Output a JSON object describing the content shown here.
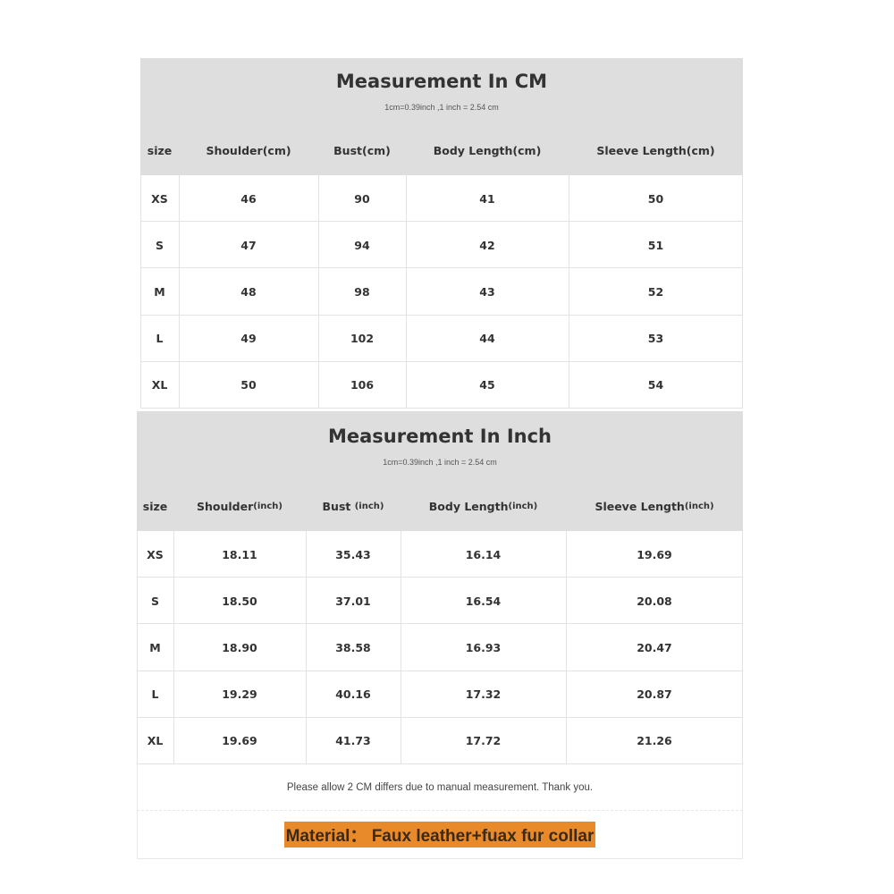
{
  "cm_table": {
    "title": "Measurement In CM",
    "subtitle": "1cm=0.39inch ,1 inch = 2.54 cm",
    "headers": [
      {
        "main": "size",
        "unit": ""
      },
      {
        "main": "Shoulder(cm)",
        "unit": ""
      },
      {
        "main": "Bust(cm)",
        "unit": ""
      },
      {
        "main": "Body Length(cm)",
        "unit": ""
      },
      {
        "main": "Sleeve Length(cm)",
        "unit": ""
      }
    ],
    "rows": [
      [
        "XS",
        "46",
        "90",
        "41",
        "50"
      ],
      [
        "S",
        "47",
        "94",
        "42",
        "51"
      ],
      [
        "M",
        "48",
        "98",
        "43",
        "52"
      ],
      [
        "L",
        "49",
        "102",
        "44",
        "53"
      ],
      [
        "XL",
        "50",
        "106",
        "45",
        "54"
      ]
    ]
  },
  "inch_table": {
    "title": "Measurement In Inch",
    "subtitle": "1cm=0.39inch ,1 inch = 2.54 cm",
    "headers": [
      {
        "main": "size",
        "unit": ""
      },
      {
        "main": "Shoulder",
        "unit": "(inch)"
      },
      {
        "main": "Bust ",
        "unit": "(inch)"
      },
      {
        "main": "Body Length",
        "unit": "(inch)"
      },
      {
        "main": "Sleeve Length",
        "unit": "(inch)"
      }
    ],
    "rows": [
      [
        "XS",
        "18.11",
        "35.43",
        "16.14",
        "19.69"
      ],
      [
        "S",
        "18.50",
        "37.01",
        "16.54",
        "20.08"
      ],
      [
        "M",
        "18.90",
        "38.58",
        "16.93",
        "20.47"
      ],
      [
        "L",
        "19.29",
        "40.16",
        "17.32",
        "20.87"
      ],
      [
        "XL",
        "19.69",
        "41.73",
        "17.72",
        "21.26"
      ]
    ]
  },
  "note": "Please allow 2 CM differs due to manual measurement. Thank you.",
  "material": "Material： Faux leather+fuax fur collar",
  "colors": {
    "header_bg": "#dedede",
    "material_highlight": "#e8892a"
  }
}
